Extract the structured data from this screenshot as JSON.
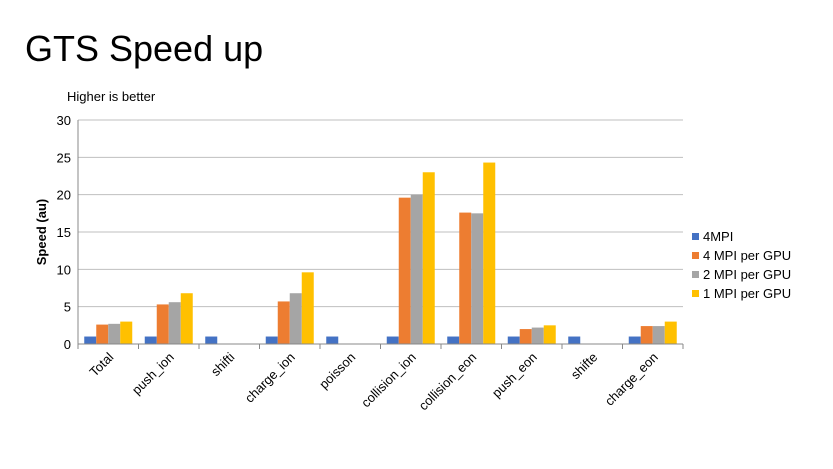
{
  "slide": {
    "title": "GTS Speed up"
  },
  "chart_data": {
    "type": "bar",
    "title": "",
    "subtitle": "Higher is better",
    "xlabel": "",
    "ylabel": "Speed (au)",
    "ylim": [
      0,
      30
    ],
    "yticks": [
      0,
      5,
      10,
      15,
      20,
      25,
      30
    ],
    "grid": true,
    "legend_position": "right",
    "categories": [
      "Total",
      "push_ion",
      "shifti",
      "charge_ion",
      "poisson",
      "collision_ion",
      "collision_eon",
      "push_eon",
      "shifte",
      "charge_eon"
    ],
    "series": [
      {
        "name": "4MPI",
        "color": "#4472c4",
        "values": [
          1,
          1,
          1,
          1,
          1,
          1,
          1,
          1,
          1,
          1
        ]
      },
      {
        "name": "4 MPI per GPU",
        "color": "#ed7d31",
        "values": [
          2.6,
          5.3,
          null,
          5.7,
          null,
          19.6,
          17.6,
          2.0,
          null,
          2.4
        ]
      },
      {
        "name": "2 MPI per GPU",
        "color": "#a5a5a5",
        "values": [
          2.7,
          5.6,
          null,
          6.8,
          null,
          20.0,
          17.5,
          2.2,
          null,
          2.4
        ]
      },
      {
        "name": "1 MPI per GPU",
        "color": "#ffc000",
        "values": [
          3.0,
          6.8,
          null,
          9.6,
          null,
          23.0,
          24.3,
          2.5,
          null,
          3.0
        ]
      }
    ]
  }
}
